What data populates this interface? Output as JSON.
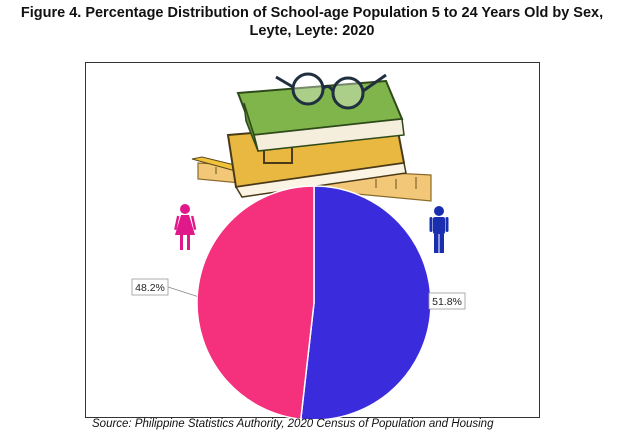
{
  "title": {
    "line1": "Figure 4. Percentage Distribution of School-age Population 5 to 24 Years Old by Sex,",
    "line2": "Leyte, Leyte: 2020"
  },
  "source": "Source: Philippine Statistics Authority, 2020 Census of Population and Housing",
  "colors": {
    "male": "#3a2bdc",
    "female": "#f5307c",
    "male_icon": "#1a2fb0",
    "female_icon": "#e0188a"
  },
  "icons": {
    "female": "female-figure-icon",
    "male": "male-figure-icon",
    "decoration": "books-glasses-ruler-illustration"
  },
  "chart_data": {
    "type": "pie",
    "title": "Figure 4. Percentage Distribution of School-age Population 5 to 24 Years Old by Sex, Leyte, Leyte: 2020",
    "slices": [
      {
        "label": "51.8%",
        "value": 51.8,
        "color": "#3a2bdc"
      },
      {
        "label": "48.2%",
        "value": 48.2,
        "color": "#f5307c"
      }
    ],
    "legend": "icons"
  }
}
